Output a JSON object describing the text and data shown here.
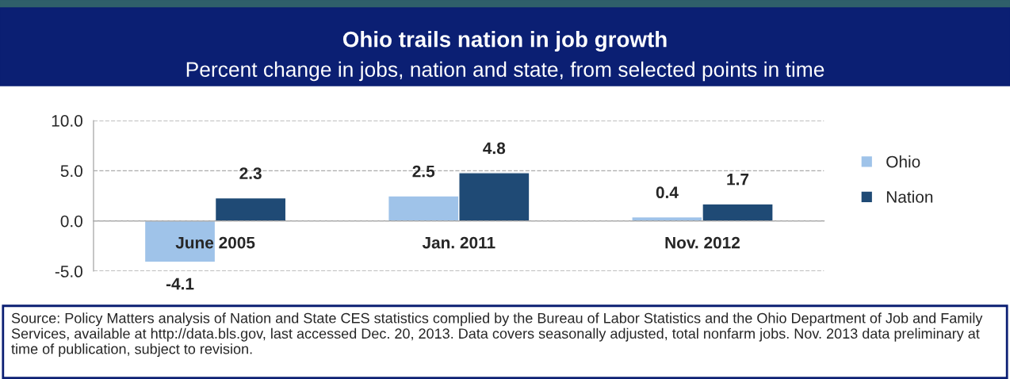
{
  "chart_data": {
    "type": "bar",
    "title": "Ohio trails nation in job growth",
    "subtitle": "Percent change in jobs, nation and state, from selected points in time",
    "categories": [
      "June 2005",
      "Jan. 2011",
      "Nov. 2012"
    ],
    "series": [
      {
        "name": "Ohio",
        "color": "#9fc3e9",
        "values": [
          -4.1,
          2.5,
          0.4
        ]
      },
      {
        "name": "Nation",
        "color": "#1f4a75",
        "values": [
          2.3,
          4.8,
          1.7
        ]
      }
    ],
    "ylim": [
      -5,
      10
    ],
    "yticks": [
      {
        "value": -5,
        "label": "-5.0"
      },
      {
        "value": 0,
        "label": "0.0"
      },
      {
        "value": 5,
        "label": "5.0"
      },
      {
        "value": 10,
        "label": "10.0"
      }
    ],
    "grid": "y",
    "legend": "right",
    "data_labels": true,
    "annotations": [
      "Source: Policy Matters analysis of Nation and State CES statistics complied by the Bureau of Labor Statistics and the Ohio Department of Job and Family Services, available at http://data.bls.gov, last accessed Dec. 20, 2013. Data covers seasonally adjusted, total nonfarm jobs. Nov. 2013 data preliminary at time of publication, subject to revision."
    ]
  }
}
